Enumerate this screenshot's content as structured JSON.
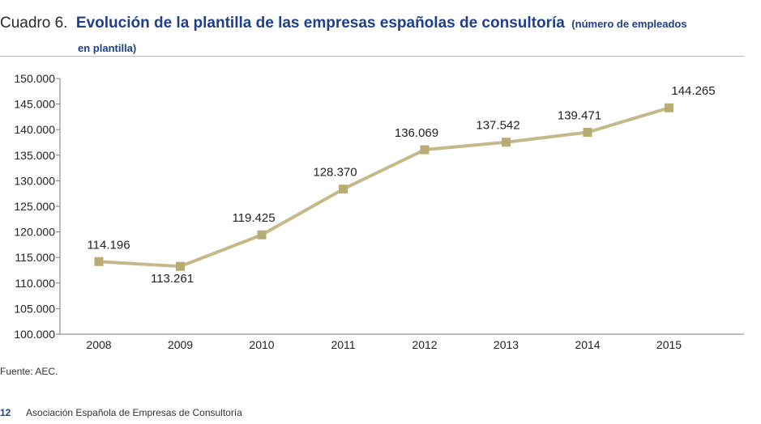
{
  "header": {
    "label": "Cuadro 6.",
    "title": "Evolución de la plantilla de las empresas españolas de consultoría",
    "subtitle_part1": "(número de empleados",
    "subtitle_part2": "en plantilla)"
  },
  "source": "Fuente: AEC.",
  "footer": {
    "page_number": "12",
    "org": "Asociación Española de Empresas de Consultoría"
  },
  "colors": {
    "line": "#c5b98a",
    "marker": "#b8ab73",
    "title": "#1f3f8a"
  },
  "chart_data": {
    "type": "line",
    "x": [
      "2008",
      "2009",
      "2010",
      "2011",
      "2012",
      "2013",
      "2014",
      "2015"
    ],
    "values": [
      114196,
      113261,
      119425,
      128370,
      136069,
      137542,
      139471,
      144265
    ],
    "data_labels": [
      "114.196",
      "113.261",
      "119.425",
      "128.370",
      "136.069",
      "137.542",
      "139.471",
      "144.265"
    ],
    "ylim": [
      100000,
      150000
    ],
    "yticks": [
      100000,
      105000,
      110000,
      115000,
      120000,
      125000,
      130000,
      135000,
      140000,
      145000,
      150000
    ],
    "ytick_labels": [
      "100.000",
      "105.000",
      "110.000",
      "115.000",
      "120.000",
      "125.000",
      "130.000",
      "135.000",
      "140.000",
      "145.000",
      "150.000"
    ],
    "grid": false,
    "legend": "none"
  }
}
